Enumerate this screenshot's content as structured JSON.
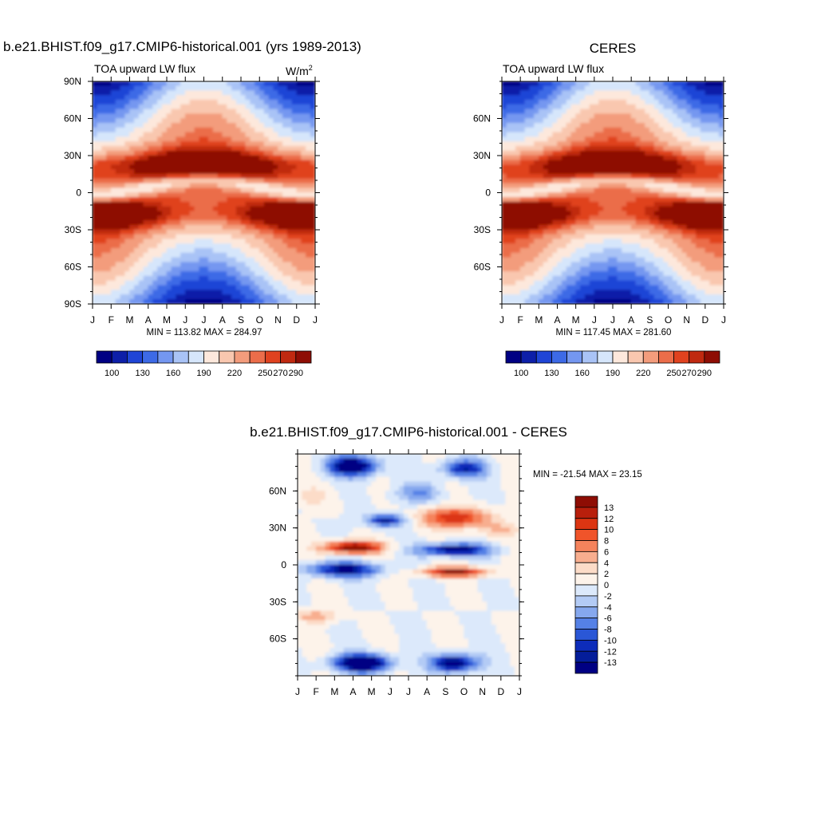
{
  "chart_data": [
    {
      "id": "model",
      "type": "heatmap",
      "title": "b.e21.BHIST.f09_g17.CMIP6-historical.001 (yrs 1989-2013)",
      "subtitle": "TOA upward LW flux",
      "units": "W/m",
      "units_sup": "2",
      "x_tick_labels": [
        "J",
        "F",
        "M",
        "A",
        "M",
        "J",
        "J",
        "A",
        "S",
        "O",
        "N",
        "D",
        "J"
      ],
      "y_tick_labels": [
        "90N",
        "60N",
        "30N",
        "0",
        "30S",
        "60S",
        "90S"
      ],
      "stats": "MIN = 113.82 MAX = 284.97",
      "min": 113.82,
      "max": 284.97,
      "colorbar_labels": [
        "100",
        "130",
        "160",
        "190",
        "220",
        "250",
        "270",
        "290"
      ]
    },
    {
      "id": "obs",
      "type": "heatmap",
      "title": "CERES",
      "subtitle": "TOA upward LW flux",
      "x_tick_labels": [
        "J",
        "F",
        "M",
        "A",
        "M",
        "J",
        "J",
        "A",
        "S",
        "O",
        "N",
        "D",
        "J"
      ],
      "y_tick_labels": [
        "60N",
        "30N",
        "0",
        "30S",
        "60S"
      ],
      "stats": "MIN = 117.45 MAX = 281.60",
      "min": 117.45,
      "max": 281.6,
      "colorbar_labels": [
        "100",
        "130",
        "160",
        "190",
        "220",
        "250",
        "270",
        "290"
      ]
    },
    {
      "id": "diff",
      "type": "heatmap",
      "title": "b.e21.BHIST.f09_g17.CMIP6-historical.001 - CERES",
      "x_tick_labels": [
        "J",
        "F",
        "M",
        "A",
        "M",
        "J",
        "J",
        "A",
        "S",
        "O",
        "N",
        "D",
        "J"
      ],
      "y_tick_labels": [
        "60N",
        "30N",
        "0",
        "30S",
        "60S"
      ],
      "stats": "MIN = -21.54 MAX =  23.15",
      "min": -21.54,
      "max": 23.15,
      "colorbar_labels": [
        "13",
        "12",
        "10",
        "8",
        "6",
        "4",
        "2",
        "0",
        "-2",
        "-4",
        "-6",
        "-8",
        "-10",
        "-12",
        "-13"
      ]
    }
  ],
  "colors": {
    "abs_palette": [
      "#000083",
      "#0d1fa8",
      "#1f45d6",
      "#3d6ae6",
      "#7497f0",
      "#a9c3f6",
      "#d6e6fb",
      "#fde8dc",
      "#f9c7af",
      "#f39c7c",
      "#eb6d4a",
      "#e0421f",
      "#c02910",
      "#8e0d04"
    ],
    "diff_palette": [
      "#8e0d04",
      "#b81f0c",
      "#dc3512",
      "#f0542a",
      "#f5835c",
      "#f8ae8f",
      "#fcdcc8",
      "#fdf3ea",
      "#dce9fb",
      "#b3cbf5",
      "#86a8ee",
      "#5581e6",
      "#2a57d6",
      "#0d2cba",
      "#041d9a",
      "#000083"
    ]
  }
}
